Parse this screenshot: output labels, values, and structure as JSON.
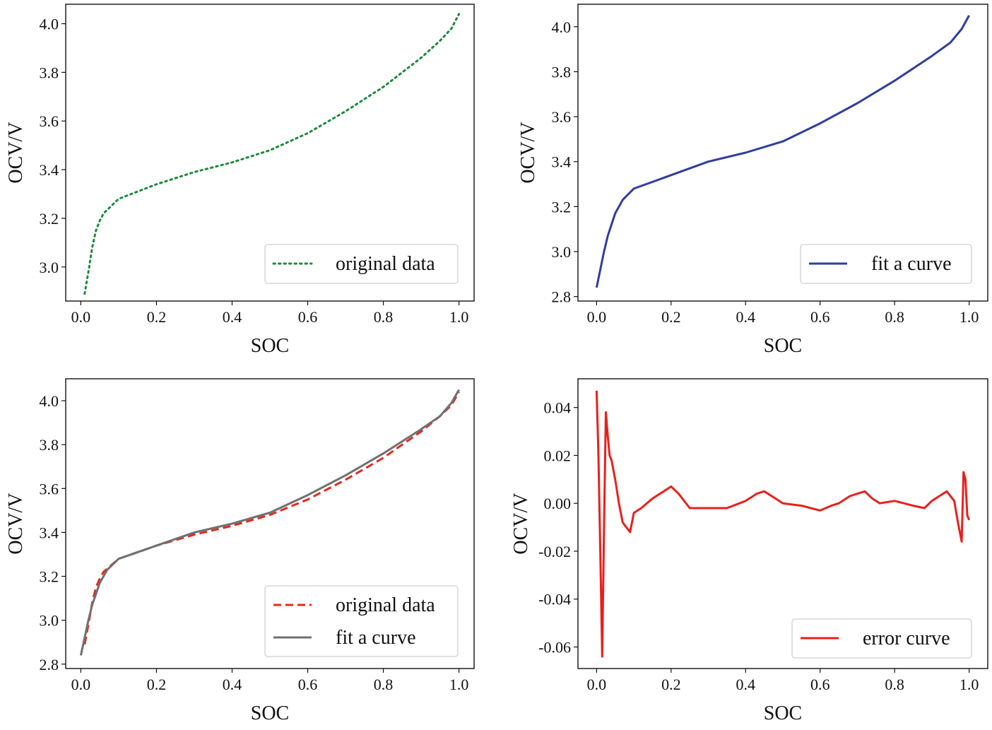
{
  "chart_data": [
    {
      "type": "line",
      "xlabel": "SOC",
      "ylabel": "OCV/V",
      "xlim": [
        -0.04,
        1.04
      ],
      "ylim": [
        2.86,
        4.08
      ],
      "xticks": [
        "0.0",
        "0.2",
        "0.4",
        "0.6",
        "0.8",
        "1.0"
      ],
      "yticks": [
        "3.0",
        "3.2",
        "3.4",
        "3.6",
        "3.8",
        "4.0"
      ],
      "legend_position": "lower-right",
      "series": [
        {
          "name": "original data",
          "color": "#1e8a3c",
          "style": "dotted",
          "x": [
            0.01,
            0.02,
            0.03,
            0.04,
            0.05,
            0.06,
            0.08,
            0.1,
            0.15,
            0.2,
            0.3,
            0.4,
            0.5,
            0.6,
            0.7,
            0.8,
            0.9,
            0.95,
            0.98,
            1.0
          ],
          "y": [
            2.89,
            2.98,
            3.08,
            3.15,
            3.19,
            3.22,
            3.25,
            3.28,
            3.31,
            3.34,
            3.39,
            3.43,
            3.48,
            3.55,
            3.64,
            3.74,
            3.86,
            3.93,
            3.98,
            4.04
          ]
        }
      ]
    },
    {
      "type": "line",
      "xlabel": "SOC",
      "ylabel": "OCV/V",
      "xlim": [
        -0.05,
        1.05
      ],
      "ylim": [
        2.78,
        4.1
      ],
      "xticks": [
        "0.0",
        "0.2",
        "0.4",
        "0.6",
        "0.8",
        "1.0"
      ],
      "yticks": [
        "2.8",
        "3.0",
        "3.2",
        "3.4",
        "3.6",
        "3.8",
        "4.0"
      ],
      "legend_position": "lower-right",
      "series": [
        {
          "name": "fit a curve",
          "color": "#2f3e9e",
          "style": "solid",
          "x": [
            0.0,
            0.01,
            0.02,
            0.03,
            0.05,
            0.07,
            0.1,
            0.15,
            0.2,
            0.3,
            0.4,
            0.5,
            0.6,
            0.7,
            0.8,
            0.9,
            0.95,
            0.98,
            1.0
          ],
          "y": [
            2.84,
            2.92,
            3.0,
            3.07,
            3.17,
            3.23,
            3.28,
            3.31,
            3.34,
            3.4,
            3.44,
            3.49,
            3.57,
            3.66,
            3.76,
            3.87,
            3.93,
            3.99,
            4.05
          ]
        }
      ]
    },
    {
      "type": "line",
      "xlabel": "SOC",
      "ylabel": "OCV/V",
      "xlim": [
        -0.04,
        1.04
      ],
      "ylim": [
        2.78,
        4.1
      ],
      "xticks": [
        "0.0",
        "0.2",
        "0.4",
        "0.6",
        "0.8",
        "1.0"
      ],
      "yticks": [
        "2.8",
        "3.0",
        "3.2",
        "3.4",
        "3.6",
        "3.8",
        "4.0"
      ],
      "legend_position": "lower-right",
      "series": [
        {
          "name": "original data",
          "color": "#e32a1e",
          "style": "dashed",
          "x": [
            0.01,
            0.02,
            0.03,
            0.04,
            0.05,
            0.06,
            0.08,
            0.1,
            0.15,
            0.2,
            0.3,
            0.4,
            0.5,
            0.6,
            0.7,
            0.8,
            0.9,
            0.95,
            0.98,
            1.0
          ],
          "y": [
            2.89,
            2.98,
            3.08,
            3.15,
            3.19,
            3.22,
            3.25,
            3.28,
            3.31,
            3.34,
            3.39,
            3.43,
            3.48,
            3.55,
            3.64,
            3.74,
            3.86,
            3.93,
            3.98,
            4.04
          ]
        },
        {
          "name": "fit a curve",
          "color": "#707070",
          "style": "solid",
          "x": [
            0.0,
            0.01,
            0.02,
            0.03,
            0.05,
            0.07,
            0.1,
            0.15,
            0.2,
            0.3,
            0.4,
            0.5,
            0.6,
            0.7,
            0.8,
            0.9,
            0.95,
            0.98,
            1.0
          ],
          "y": [
            2.84,
            2.92,
            3.0,
            3.07,
            3.17,
            3.23,
            3.28,
            3.31,
            3.34,
            3.4,
            3.44,
            3.49,
            3.57,
            3.66,
            3.76,
            3.87,
            3.93,
            3.99,
            4.05
          ]
        }
      ]
    },
    {
      "type": "line",
      "xlabel": "SOC",
      "ylabel": "OCV/V",
      "xlim": [
        -0.05,
        1.05
      ],
      "ylim": [
        -0.069,
        0.052
      ],
      "xticks": [
        "0.0",
        "0.2",
        "0.4",
        "0.6",
        "0.8",
        "1.0"
      ],
      "yticks": [
        "-0.06",
        "-0.04",
        "-0.02",
        "0.00",
        "0.02",
        "0.04"
      ],
      "legend_position": "lower-right",
      "series": [
        {
          "name": "error curve",
          "color": "#e8201c",
          "style": "solid",
          "x": [
            0.0,
            0.005,
            0.01,
            0.015,
            0.02,
            0.025,
            0.03,
            0.035,
            0.04,
            0.05,
            0.06,
            0.07,
            0.08,
            0.09,
            0.1,
            0.12,
            0.15,
            0.18,
            0.2,
            0.22,
            0.25,
            0.3,
            0.35,
            0.4,
            0.43,
            0.45,
            0.48,
            0.5,
            0.55,
            0.6,
            0.63,
            0.65,
            0.68,
            0.7,
            0.72,
            0.74,
            0.76,
            0.8,
            0.85,
            0.88,
            0.9,
            0.92,
            0.94,
            0.96,
            0.97,
            0.98,
            0.985,
            0.99,
            0.995,
            1.0
          ],
          "y": [
            0.047,
            0.02,
            -0.02,
            -0.064,
            -0.01,
            0.038,
            0.028,
            0.02,
            0.018,
            0.01,
            0.0,
            -0.008,
            -0.01,
            -0.012,
            -0.004,
            -0.002,
            0.002,
            0.005,
            0.007,
            0.004,
            -0.002,
            -0.002,
            -0.002,
            0.001,
            0.004,
            0.005,
            0.002,
            0.0,
            -0.001,
            -0.003,
            -0.001,
            0.0,
            0.003,
            0.004,
            0.005,
            0.002,
            0.0,
            0.001,
            -0.001,
            -0.002,
            0.001,
            0.003,
            0.005,
            0.001,
            -0.008,
            -0.016,
            0.013,
            0.01,
            -0.005,
            -0.007
          ]
        }
      ]
    }
  ]
}
